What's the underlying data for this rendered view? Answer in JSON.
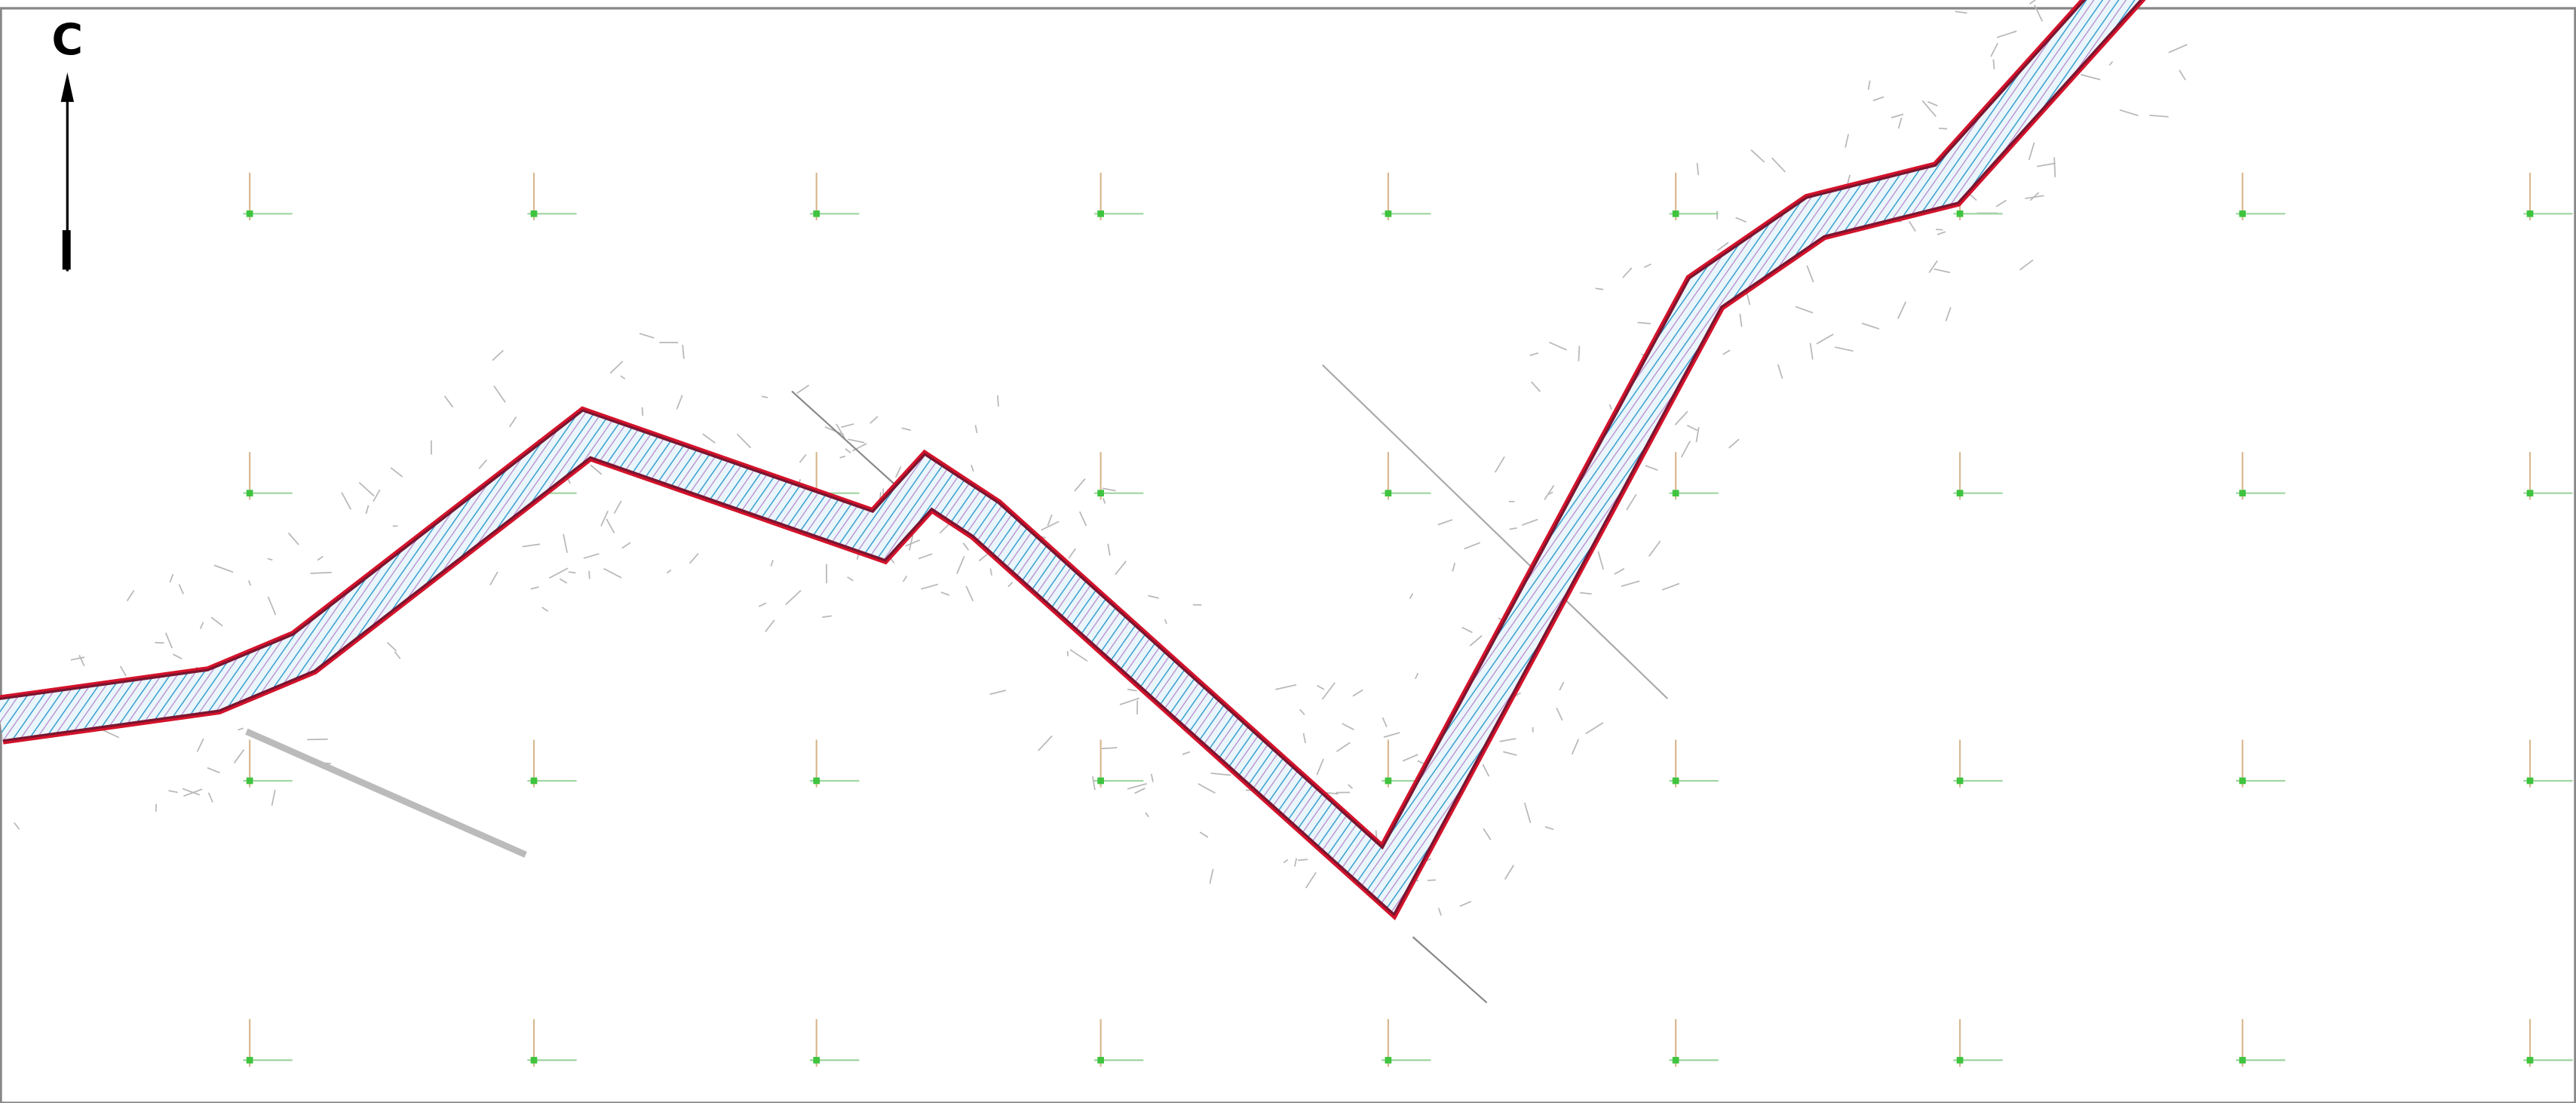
{
  "north_label": "С"
}
